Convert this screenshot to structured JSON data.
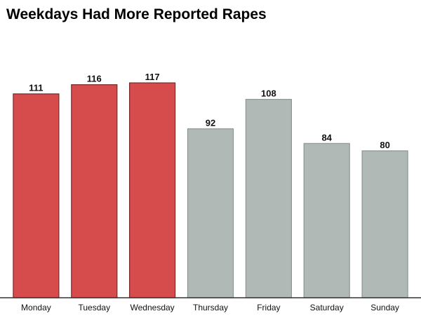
{
  "chart_data": {
    "type": "bar",
    "title": "Weekdays Had More Reported Rapes",
    "xlabel": "",
    "ylabel": "",
    "categories": [
      "Monday",
      "Tuesday",
      "Wednesday",
      "Thursday",
      "Friday",
      "Saturday",
      "Sunday"
    ],
    "values": [
      111,
      116,
      117,
      92,
      108,
      84,
      80
    ],
    "highlight": [
      true,
      true,
      true,
      false,
      false,
      false,
      false
    ],
    "colors": {
      "highlight": "#d64b4b",
      "highlight_stroke": "#7a2a2a",
      "default": "#b1b9b7",
      "default_stroke": "#8c9592",
      "baseline": "#333333"
    },
    "ylim": [
      0,
      117
    ],
    "grid": false,
    "data_labels": true
  }
}
